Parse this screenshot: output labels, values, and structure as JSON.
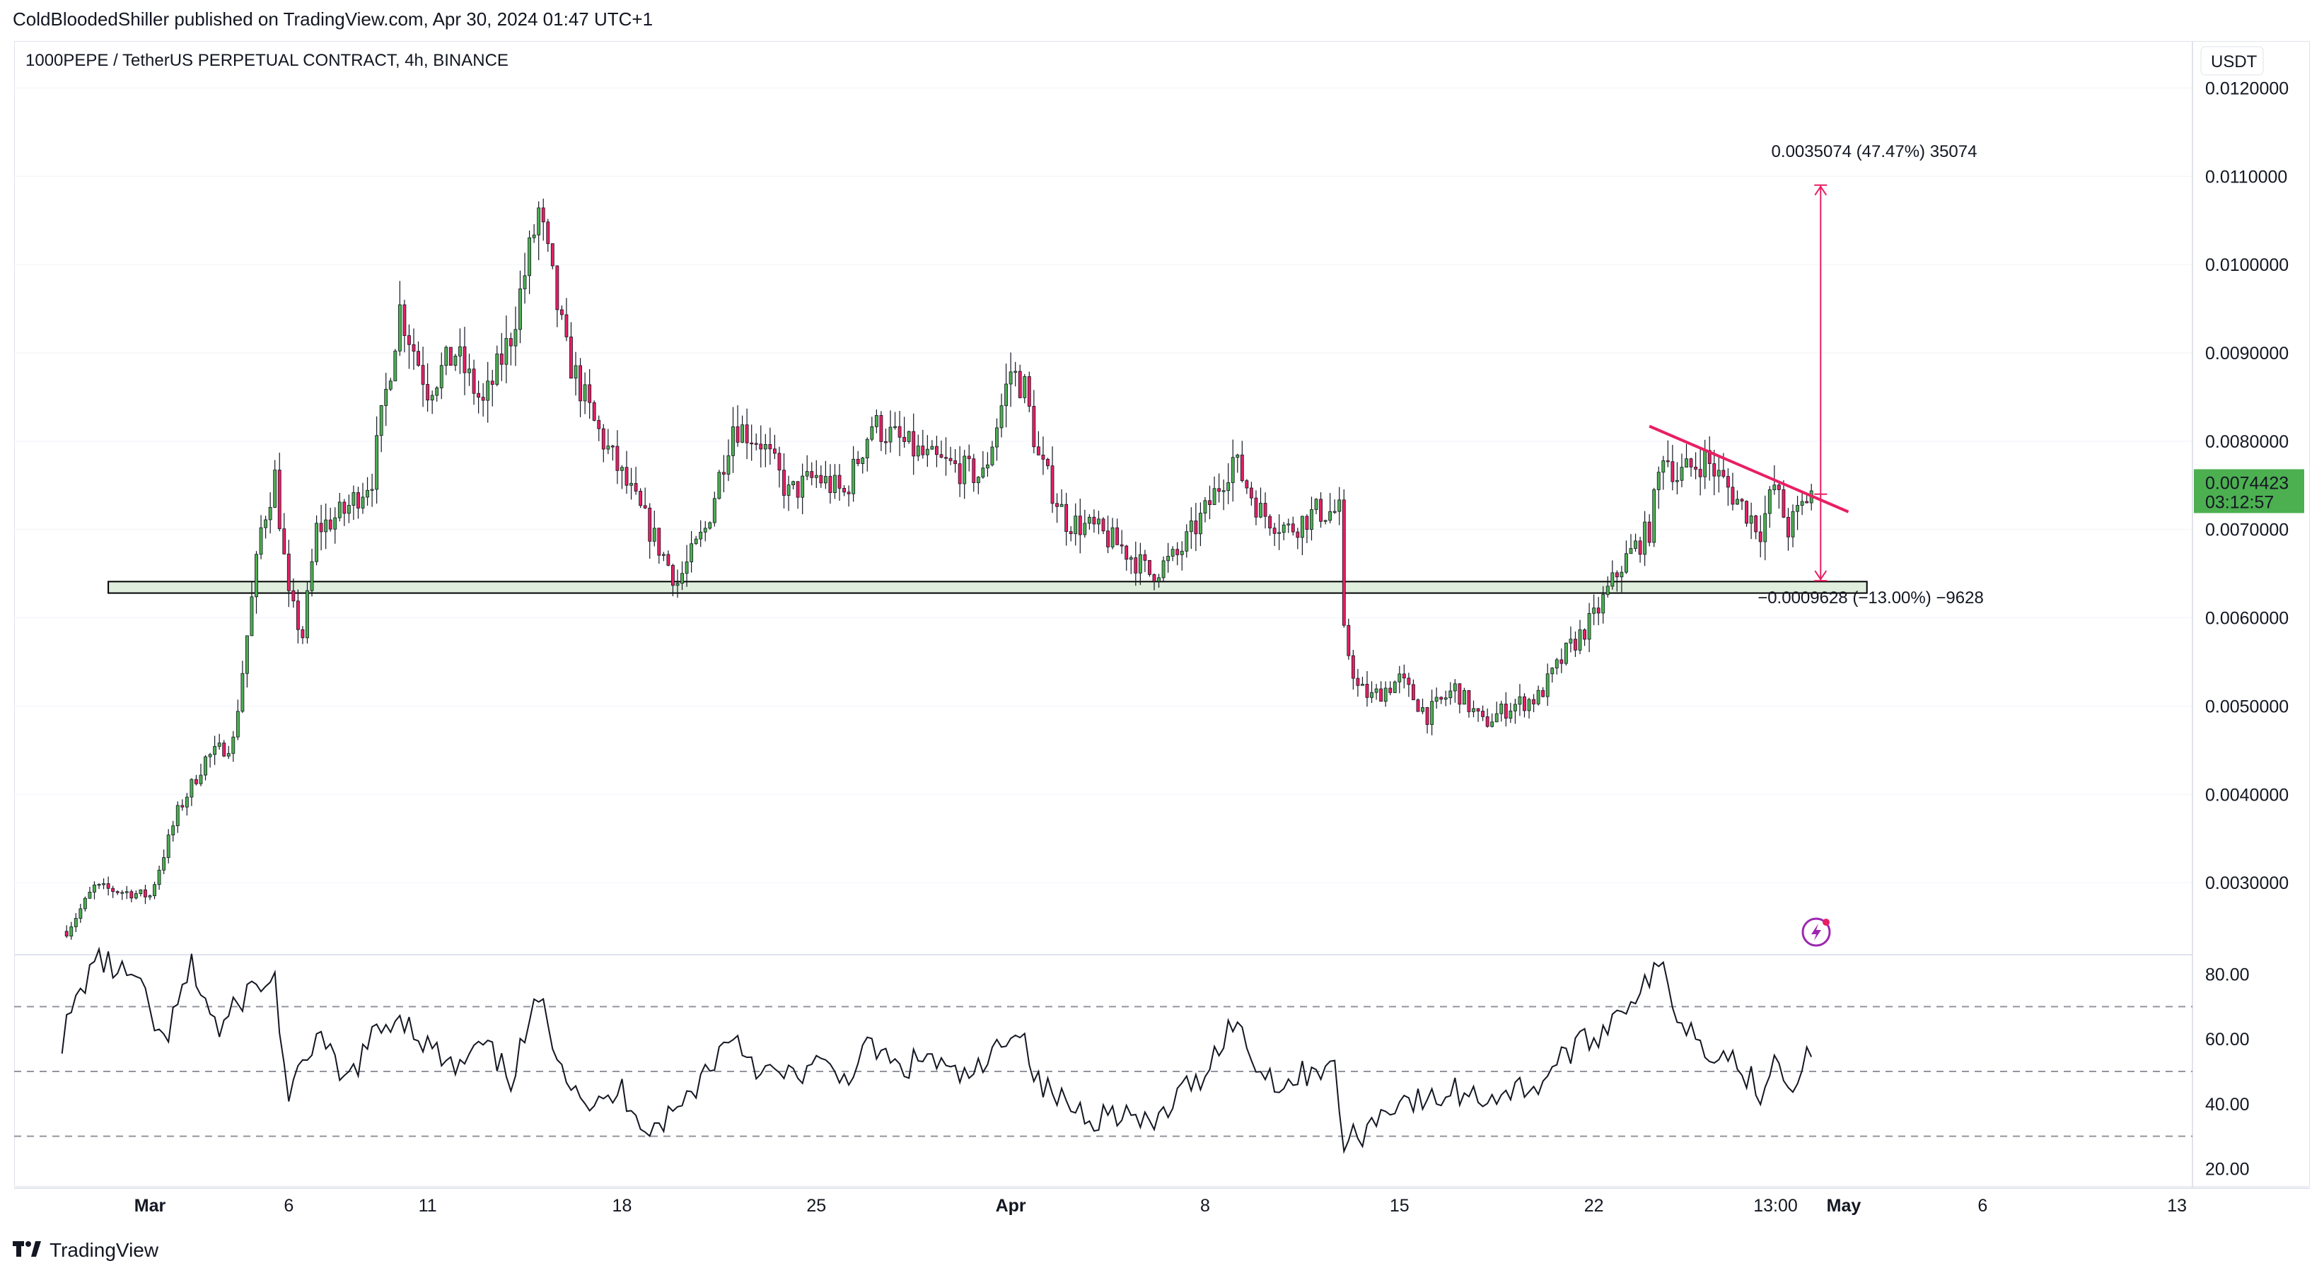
{
  "header": {
    "publisher_line": "ColdBloodedShiller published on TradingView.com, Apr 30, 2024 01:47 UTC+1"
  },
  "chart_data": {
    "type": "candlestick",
    "symbol_line": "1000PEPE / TetherUS PERPETUAL CONTRACT, 4h, BINANCE",
    "currency_button": "USDT",
    "price_axis": {
      "ticks": [
        "0.0030000",
        "0.0040000",
        "0.0050000",
        "0.0060000",
        "0.0070000",
        "0.0080000",
        "0.0090000",
        "0.0100000",
        "0.0110000",
        "0.0120000"
      ],
      "range": [
        0.0022,
        0.0125
      ]
    },
    "time_axis": {
      "ticks": [
        "Mar",
        "6",
        "11",
        "18",
        "25",
        "Apr",
        "8",
        "15",
        "22",
        "13:00",
        "May",
        "6",
        "13"
      ]
    },
    "price_path_anchors": [
      {
        "date": "Feb 27 00:00",
        "price": 0.00245
      },
      {
        "date": "Feb 28 00:00",
        "price": 0.00295
      },
      {
        "date": "Feb 29 00:00",
        "price": 0.0029
      },
      {
        "date": "Mar 1 00:00",
        "price": 0.00285
      },
      {
        "date": "Mar 2 00:00",
        "price": 0.0038
      },
      {
        "date": "Mar 3 00:00",
        "price": 0.0044
      },
      {
        "date": "Mar 4 00:00",
        "price": 0.0046
      },
      {
        "date": "Mar 4 12:00",
        "price": 0.0058
      },
      {
        "date": "Mar 5 00:00",
        "price": 0.007
      },
      {
        "date": "Mar 5 12:00",
        "price": 0.0076
      },
      {
        "date": "Mar 6 00:00",
        "price": 0.0062
      },
      {
        "date": "Mar 6 12:00",
        "price": 0.0058
      },
      {
        "date": "Mar 7 00:00",
        "price": 0.007
      },
      {
        "date": "Mar 8 00:00",
        "price": 0.0072
      },
      {
        "date": "Mar 9 00:00",
        "price": 0.0076
      },
      {
        "date": "Mar 10 00:00",
        "price": 0.0095
      },
      {
        "date": "Mar 11 00:00",
        "price": 0.0086
      },
      {
        "date": "Mar 12 00:00",
        "price": 0.009
      },
      {
        "date": "Mar 13 00:00",
        "price": 0.0084
      },
      {
        "date": "Mar 14 00:00",
        "price": 0.0092
      },
      {
        "date": "Mar 15 00:00",
        "price": 0.0106
      },
      {
        "date": "Mar 15 12:00",
        "price": 0.0098
      },
      {
        "date": "Mar 16 00:00",
        "price": 0.009
      },
      {
        "date": "Mar 17 00:00",
        "price": 0.0082
      },
      {
        "date": "Mar 18 00:00",
        "price": 0.0076
      },
      {
        "date": "Mar 19 00:00",
        "price": 0.007
      },
      {
        "date": "Mar 20 00:00",
        "price": 0.0064
      },
      {
        "date": "Mar 21 00:00",
        "price": 0.007
      },
      {
        "date": "Mar 22 00:00",
        "price": 0.0082
      },
      {
        "date": "Mar 23 00:00",
        "price": 0.008
      },
      {
        "date": "Mar 24 00:00",
        "price": 0.0074
      },
      {
        "date": "Mar 25 00:00",
        "price": 0.0076
      },
      {
        "date": "Mar 26 00:00",
        "price": 0.0074
      },
      {
        "date": "Mar 27 00:00",
        "price": 0.0082
      },
      {
        "date": "Mar 28 00:00",
        "price": 0.008
      },
      {
        "date": "Mar 29 00:00",
        "price": 0.0078
      },
      {
        "date": "Mar 30 00:00",
        "price": 0.0077
      },
      {
        "date": "Mar 31 00:00",
        "price": 0.0076
      },
      {
        "date": "Apr 1 00:00",
        "price": 0.0088
      },
      {
        "date": "Apr 1 12:00",
        "price": 0.0086
      },
      {
        "date": "Apr 2 00:00",
        "price": 0.0078
      },
      {
        "date": "Apr 3 00:00",
        "price": 0.0071
      },
      {
        "date": "Apr 4 00:00",
        "price": 0.007
      },
      {
        "date": "Apr 5 00:00",
        "price": 0.0068
      },
      {
        "date": "Apr 6 00:00",
        "price": 0.0065
      },
      {
        "date": "Apr 7 00:00",
        "price": 0.0067
      },
      {
        "date": "Apr 8 00:00",
        "price": 0.0072
      },
      {
        "date": "Apr 9 00:00",
        "price": 0.0078
      },
      {
        "date": "Apr 10 00:00",
        "price": 0.0072
      },
      {
        "date": "Apr 11 00:00",
        "price": 0.007
      },
      {
        "date": "Apr 12 00:00",
        "price": 0.0072
      },
      {
        "date": "Apr 12 20:00",
        "price": 0.0072
      },
      {
        "date": "Apr 13 00:00",
        "price": 0.0058
      },
      {
        "date": "Apr 13 12:00",
        "price": 0.0052
      },
      {
        "date": "Apr 14 00:00",
        "price": 0.0051
      },
      {
        "date": "Apr 15 00:00",
        "price": 0.0053
      },
      {
        "date": "Apr 16 00:00",
        "price": 0.0049
      },
      {
        "date": "Apr 17 00:00",
        "price": 0.0052
      },
      {
        "date": "Apr 18 00:00",
        "price": 0.0048
      },
      {
        "date": "Apr 19 00:00",
        "price": 0.005
      },
      {
        "date": "Apr 20 00:00",
        "price": 0.0051
      },
      {
        "date": "Apr 21 00:00",
        "price": 0.0056
      },
      {
        "date": "Apr 22 00:00",
        "price": 0.006
      },
      {
        "date": "Apr 23 00:00",
        "price": 0.0066
      },
      {
        "date": "Apr 24 00:00",
        "price": 0.007
      },
      {
        "date": "Apr 24 12:00",
        "price": 0.0079
      },
      {
        "date": "Apr 25 00:00",
        "price": 0.0076
      },
      {
        "date": "Apr 26 00:00",
        "price": 0.0078
      },
      {
        "date": "Apr 27 00:00",
        "price": 0.0074
      },
      {
        "date": "Apr 28 00:00",
        "price": 0.007
      },
      {
        "date": "Apr 28 12:00",
        "price": 0.0075
      },
      {
        "date": "Apr 29 00:00",
        "price": 0.007
      },
      {
        "date": "Apr 29 20:00",
        "price": 0.00744
      }
    ],
    "support_zone": {
      "from_date": "Feb 28 12:00",
      "to_date": "May 1 20:00",
      "price_low": 0.00628,
      "price_high": 0.00641,
      "fill": "#dfeedd",
      "stroke": "#000000"
    },
    "trendline": {
      "color": "#e91e63",
      "from": {
        "date": "Apr 24 00:00",
        "price": 0.00817
      },
      "to": {
        "date": "May 1 04:00",
        "price": 0.0072
      }
    },
    "measure_up": {
      "label": "0.0035074 (47.47%) 35074",
      "from_price": 0.0074,
      "to_price": 0.0109,
      "date": "Apr 30 04:00",
      "color": "#e91e63"
    },
    "measure_down": {
      "label": "−0.0009628 (−13.00%) −9628",
      "from_price": 0.0074,
      "to_price": 0.00642,
      "date": "Apr 30 04:00",
      "color": "#e91e63"
    },
    "last_price": {
      "price": 0.0074423,
      "label": "0.0074423",
      "countdown": "03:12:57",
      "color": "#4caf50"
    },
    "colors": {
      "up": "#4caf50",
      "down": "#e91e63",
      "wick": "#131722",
      "grid": "#f0f3fa",
      "axis_text": "#131722"
    },
    "rsi": {
      "ticks": [
        "20.00",
        "40.00",
        "60.00",
        "80.00"
      ],
      "range": [
        14,
        86
      ],
      "levels": [
        30,
        50,
        70
      ],
      "level_color": "#787b86",
      "line_color": "#131722",
      "anchors": [
        {
          "date": "Feb 26 20:00",
          "value": 60
        },
        {
          "date": "Feb 28 00:00",
          "value": 85
        },
        {
          "date": "Feb 29 12:00",
          "value": 78
        },
        {
          "date": "Mar 1 12:00",
          "value": 58
        },
        {
          "date": "Mar 2 12:00",
          "value": 82
        },
        {
          "date": "Mar 3 12:00",
          "value": 62
        },
        {
          "date": "Mar 4 12:00",
          "value": 75
        },
        {
          "date": "Mar 5 12:00",
          "value": 78
        },
        {
          "date": "Mar 6 00:00",
          "value": 40
        },
        {
          "date": "Mar 7 00:00",
          "value": 62
        },
        {
          "date": "Mar 8 00:00",
          "value": 46
        },
        {
          "date": "Mar 9 00:00",
          "value": 60
        },
        {
          "date": "Mar 10 00:00",
          "value": 68
        },
        {
          "date": "Mar 11 00:00",
          "value": 58
        },
        {
          "date": "Mar 12 00:00",
          "value": 50
        },
        {
          "date": "Mar 13 00:00",
          "value": 58
        },
        {
          "date": "Mar 14 00:00",
          "value": 48
        },
        {
          "date": "Mar 15 00:00",
          "value": 72
        },
        {
          "date": "Mar 16 00:00",
          "value": 50
        },
        {
          "date": "Mar 17 00:00",
          "value": 38
        },
        {
          "date": "Mar 18 00:00",
          "value": 44
        },
        {
          "date": "Mar 19 00:00",
          "value": 32
        },
        {
          "date": "Mar 20 00:00",
          "value": 38
        },
        {
          "date": "Mar 21 00:00",
          "value": 50
        },
        {
          "date": "Mar 22 00:00",
          "value": 62
        },
        {
          "date": "Mar 23 00:00",
          "value": 50
        },
        {
          "date": "Mar 24 00:00",
          "value": 48
        },
        {
          "date": "Mar 25 00:00",
          "value": 52
        },
        {
          "date": "Mar 26 00:00",
          "value": 48
        },
        {
          "date": "Mar 27 00:00",
          "value": 58
        },
        {
          "date": "Mar 28 00:00",
          "value": 50
        },
        {
          "date": "Mar 29 00:00",
          "value": 55
        },
        {
          "date": "Mar 30 00:00",
          "value": 48
        },
        {
          "date": "Mar 31 00:00",
          "value": 50
        },
        {
          "date": "Apr 1 00:00",
          "value": 64
        },
        {
          "date": "Apr 1 12:00",
          "value": 60
        },
        {
          "date": "Apr 2 00:00",
          "value": 46
        },
        {
          "date": "Apr 3 00:00",
          "value": 40
        },
        {
          "date": "Apr 4 00:00",
          "value": 36
        },
        {
          "date": "Apr 5 00:00",
          "value": 38
        },
        {
          "date": "Apr 6 00:00",
          "value": 32
        },
        {
          "date": "Apr 7 00:00",
          "value": 42
        },
        {
          "date": "Apr 8 00:00",
          "value": 50
        },
        {
          "date": "Apr 9 00:00",
          "value": 66
        },
        {
          "date": "Apr 10 00:00",
          "value": 50
        },
        {
          "date": "Apr 11 00:00",
          "value": 46
        },
        {
          "date": "Apr 12 00:00",
          "value": 52
        },
        {
          "date": "Apr 12 16:00",
          "value": 50
        },
        {
          "date": "Apr 13 00:00",
          "value": 28
        },
        {
          "date": "Apr 13 12:00",
          "value": 30
        },
        {
          "date": "Apr 14 00:00",
          "value": 34
        },
        {
          "date": "Apr 15 00:00",
          "value": 42
        },
        {
          "date": "Apr 16 00:00",
          "value": 40
        },
        {
          "date": "Apr 17 00:00",
          "value": 44
        },
        {
          "date": "Apr 18 00:00",
          "value": 42
        },
        {
          "date": "Apr 19 00:00",
          "value": 44
        },
        {
          "date": "Apr 20 00:00",
          "value": 46
        },
        {
          "date": "Apr 21 00:00",
          "value": 56
        },
        {
          "date": "Apr 22 00:00",
          "value": 60
        },
        {
          "date": "Apr 23 00:00",
          "value": 70
        },
        {
          "date": "Apr 24 00:00",
          "value": 78
        },
        {
          "date": "Apr 24 12:00",
          "value": 82
        },
        {
          "date": "Apr 25 00:00",
          "value": 68
        },
        {
          "date": "Apr 26 00:00",
          "value": 58
        },
        {
          "date": "Apr 27 00:00",
          "value": 54
        },
        {
          "date": "Apr 28 00:00",
          "value": 44
        },
        {
          "date": "Apr 28 12:00",
          "value": 56
        },
        {
          "date": "Apr 29 00:00",
          "value": 46
        },
        {
          "date": "Apr 29 20:00",
          "value": 56
        }
      ]
    }
  },
  "footer": {
    "brand": "TradingView"
  }
}
